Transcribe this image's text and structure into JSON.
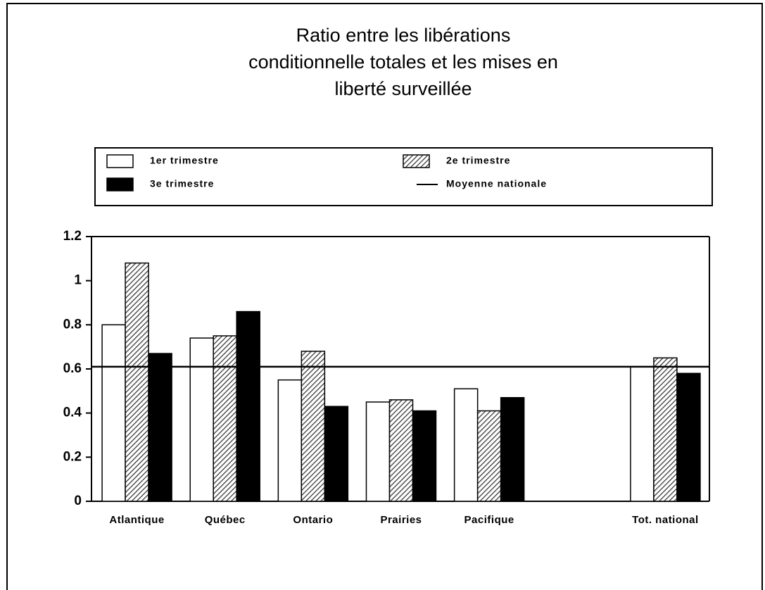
{
  "chart_data": {
    "type": "bar",
    "title": [
      "Ratio entre les libérations",
      "conditionnelle totales et les mises en",
      "liberté surveillée"
    ],
    "categories": [
      "Atlantique",
      "Québec",
      "Ontario",
      "Prairies",
      "Pacifique",
      null,
      "Tot. national"
    ],
    "series": [
      {
        "name": "1er trimestre",
        "color": "#ffffff",
        "values": [
          0.8,
          0.74,
          0.55,
          0.45,
          0.51,
          null,
          0.61
        ]
      },
      {
        "name": "2e trimestre",
        "color": "#555555",
        "pattern": "hatch",
        "values": [
          1.08,
          0.75,
          0.68,
          0.46,
          0.41,
          null,
          0.65
        ]
      },
      {
        "name": "3e trimestre",
        "color": "#000000",
        "values": [
          0.67,
          0.86,
          0.43,
          0.41,
          0.47,
          null,
          0.58
        ]
      }
    ],
    "reference_line": {
      "name": "Moyenne nationale",
      "value": 0.61,
      "color": "#000000"
    },
    "ylim": [
      0,
      1.2
    ],
    "yticks": [
      0,
      0.2,
      0.4,
      0.6,
      0.8,
      1,
      1.2
    ],
    "grid": false
  }
}
